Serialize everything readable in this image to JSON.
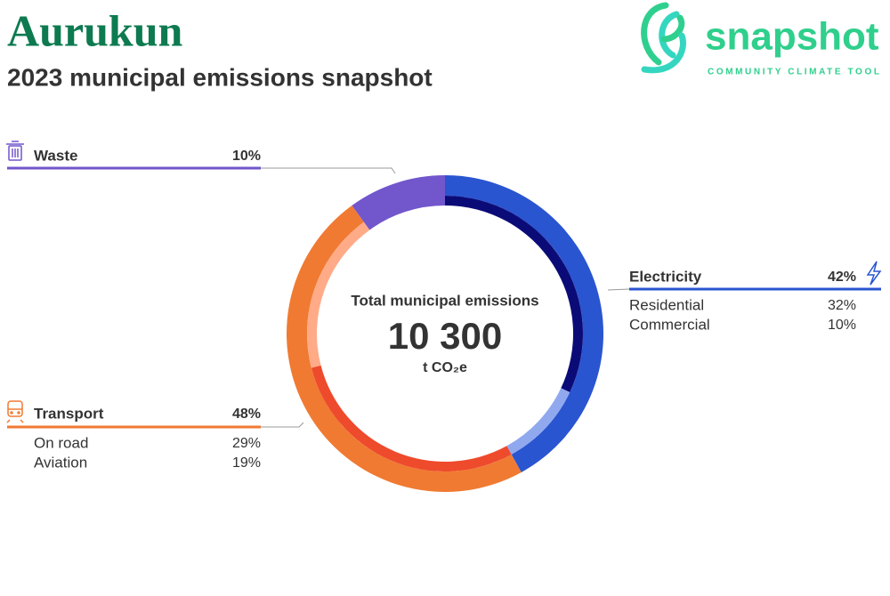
{
  "chart_data": {
    "type": "donut",
    "title": "Aurukun",
    "subtitle": "2023 municipal emissions snapshot",
    "logo": {
      "name": "snapshot",
      "tagline": "COMMUNITY CLIMATE TOOL"
    },
    "center": {
      "label": "Total municipal emissions",
      "total": {
        "value": 10300,
        "label": "10 300"
      },
      "unit": "t CO₂e"
    },
    "series": [
      {
        "name": "Electricity",
        "value": 42,
        "value_label": "42%",
        "color": "#2a55d0",
        "parts": [
          {
            "name": "Residential",
            "value": 32,
            "value_label": "32%",
            "color": "#0b0b78"
          },
          {
            "name": "Commercial",
            "value": 10,
            "value_label": "10%",
            "color": "#90a8ee"
          }
        ]
      },
      {
        "name": "Transport",
        "value": 48,
        "value_label": "48%",
        "color": "#f07a32",
        "parts": [
          {
            "name": "On road",
            "value": 29,
            "value_label": "29%",
            "color": "#ee4a2c"
          },
          {
            "name": "Aviation",
            "value": 19,
            "value_label": "19%",
            "color": "#ffab88"
          }
        ]
      },
      {
        "name": "Waste",
        "value": 10,
        "value_label": "10%",
        "color": "#7256cc"
      }
    ]
  }
}
